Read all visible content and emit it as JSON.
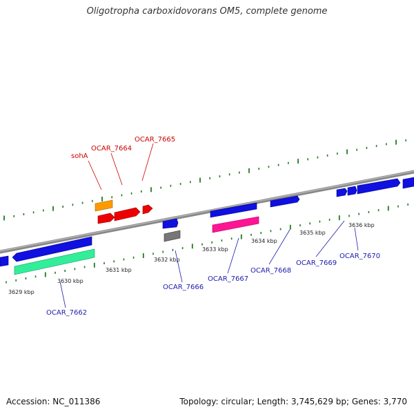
{
  "title": "Oligotropha carboxidovorans OM5, complete genome",
  "footer": {
    "accession": "Accession: NC_011386",
    "topology": "Topology: circular; Length: 3,745,629 bp; Genes: 3,770"
  },
  "colors": {
    "backbone": "#8c8c8c",
    "tick": "#1f7a1f",
    "label_upper": "#cc0000",
    "label_lower": "#1a1aaa"
  },
  "scale": {
    "kbp_labels": [
      "3629 kbp",
      "3630 kbp",
      "3631 kbp",
      "3632 kbp",
      "3633 kbp",
      "3634 kbp",
      "3635 kbp",
      "3636 kbp"
    ]
  },
  "genes_upper": [
    {
      "name": "sohA",
      "color": "#ff9900"
    },
    {
      "name": "OCAR_7664",
      "color": "#ee0000"
    },
    {
      "name": "OCAR_7665",
      "color": "#ee0000"
    }
  ],
  "genes_lower": [
    {
      "name": "OCAR_7662",
      "color": "#33ee99"
    },
    {
      "name": "OCAR_7666",
      "color": "#777777"
    },
    {
      "name": "OCAR_7667",
      "color": "#ff1493"
    },
    {
      "name": "OCAR_7668",
      "color": "#0000ee"
    },
    {
      "name": "OCAR_7669",
      "color": "#0000ee"
    },
    {
      "name": "OCAR_7670",
      "color": "#0000ee"
    }
  ]
}
